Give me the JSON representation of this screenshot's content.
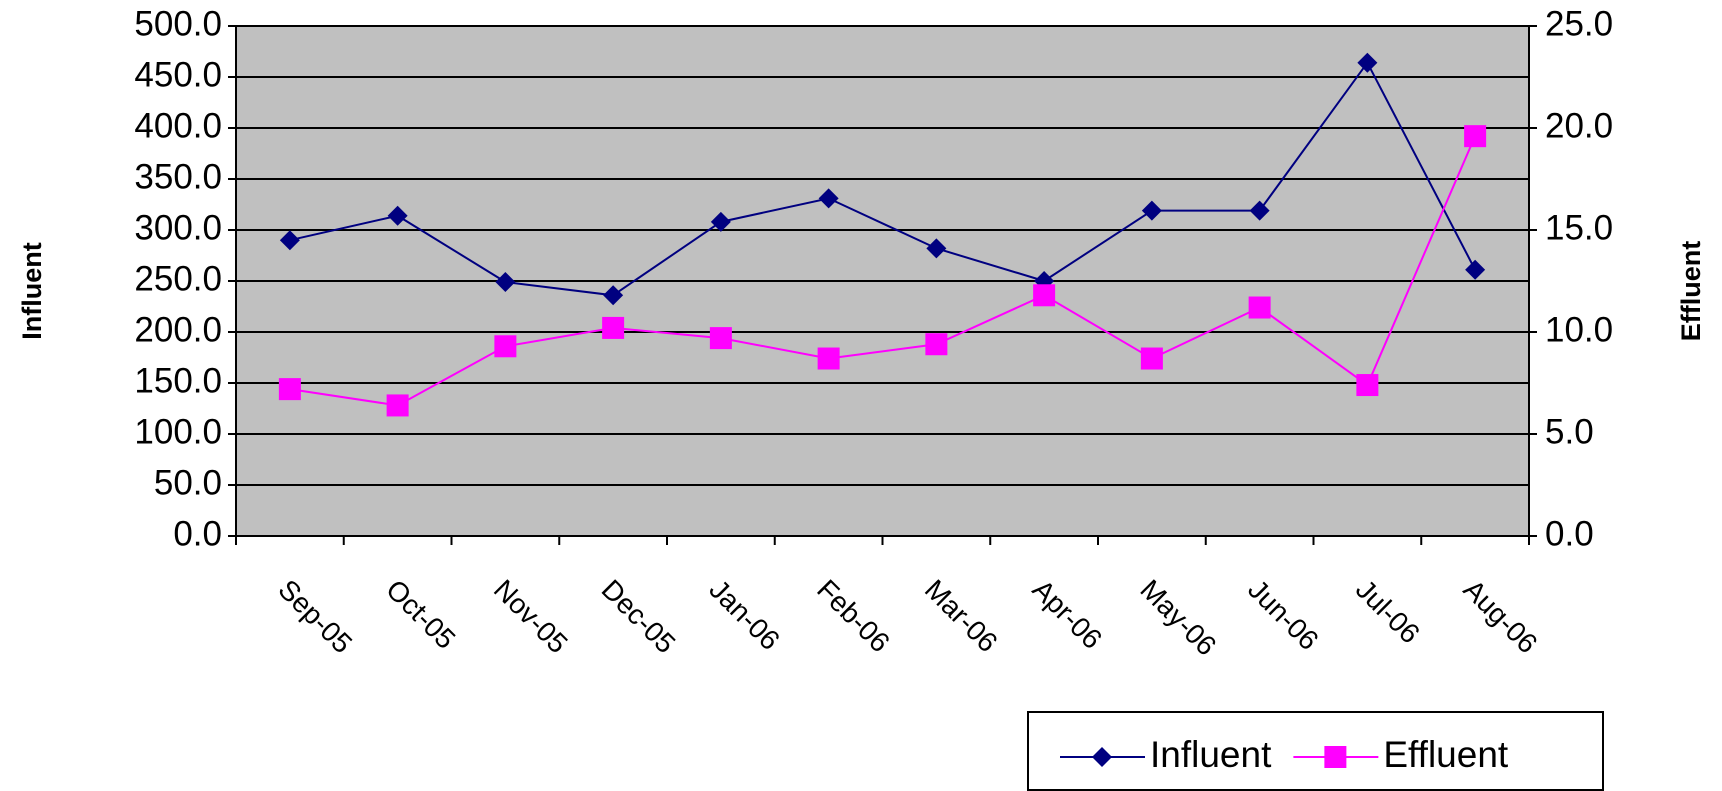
{
  "chart_data": {
    "type": "line",
    "categories": [
      "Sep-05",
      "Oct-05",
      "Nov-05",
      "Dec-05",
      "Jan-06",
      "Feb-06",
      "Mar-06",
      "Apr-06",
      "May-06",
      "Jun-06",
      "Jul-06",
      "Aug-06"
    ],
    "series": [
      {
        "name": "Influent",
        "color": "#000080",
        "marker": "diamond",
        "values": [
          290,
          314,
          249,
          236,
          308,
          331,
          282,
          250,
          319,
          319,
          464,
          261
        ]
      },
      {
        "name": "Effluent",
        "color": "#ff00ff",
        "marker": "square",
        "axis": "y2",
        "values": [
          7.2,
          6.4,
          9.3,
          10.2,
          9.7,
          8.7,
          9.4,
          11.8,
          8.7,
          11.2,
          7.4,
          19.6
        ]
      }
    ],
    "ylabel": "Influent",
    "y2label": "Effluent",
    "ylim": [
      0,
      500
    ],
    "yticks": [
      {
        "value": 0,
        "label": "0.0"
      },
      {
        "value": 50,
        "label": "50.0"
      },
      {
        "value": 100,
        "label": "100.0"
      },
      {
        "value": 150,
        "label": "150.0"
      },
      {
        "value": 200,
        "label": "200.0"
      },
      {
        "value": 250,
        "label": "250.0"
      },
      {
        "value": 300,
        "label": "300.0"
      },
      {
        "value": 350,
        "label": "350.0"
      },
      {
        "value": 400,
        "label": "400.0"
      },
      {
        "value": 450,
        "label": "450.0"
      },
      {
        "value": 500,
        "label": "500.0"
      }
    ],
    "y2lim": [
      0,
      25
    ],
    "y2ticks": [
      {
        "value": 0,
        "label": "0.0"
      },
      {
        "value": 5,
        "label": "5.0"
      },
      {
        "value": 10,
        "label": "10.0"
      },
      {
        "value": 15,
        "label": "15.0"
      },
      {
        "value": 20,
        "label": "20.0"
      },
      {
        "value": 25,
        "label": "25.0"
      }
    ],
    "grid": true,
    "legend": "bottom-right",
    "plot_background": "#c0c0c0"
  }
}
